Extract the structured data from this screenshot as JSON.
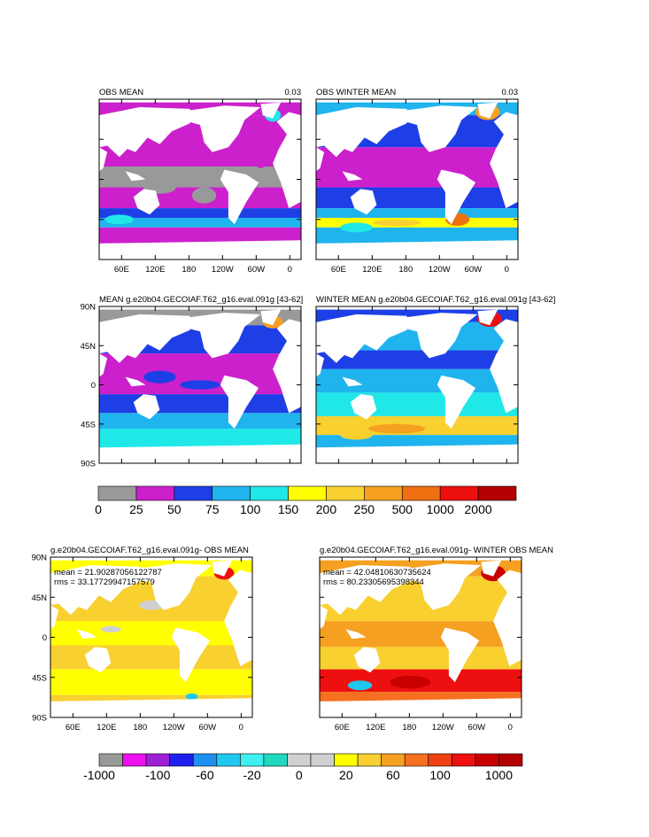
{
  "chart_data": [
    {
      "type": "heatmap",
      "title": "OBS MEAN",
      "right_label": "0.03",
      "x_tick_labels": [
        "60E",
        "120E",
        "180",
        "120W",
        "60W",
        "0"
      ],
      "y_tick_labels": []
    },
    {
      "type": "heatmap",
      "title": "OBS WINTER MEAN",
      "right_label": "0.03",
      "x_tick_labels": [
        "60E",
        "120E",
        "180",
        "120W",
        "60W",
        "0"
      ],
      "y_tick_labels": []
    },
    {
      "type": "heatmap",
      "title": "MEAN g.e20b04.GECOIAF.T62_g16.eval.091g [43-62]",
      "y_tick_labels": [
        "90N",
        "45N",
        "0",
        "45S",
        "90S"
      ]
    },
    {
      "type": "heatmap",
      "title": "WINTER MEAN g.e20b04.GECOIAF.T62_g16.eval.091g [43-62]",
      "y_tick_labels": []
    },
    {
      "type": "heatmap",
      "title": "g.e20b04.GECOIAF.T62_g16.eval.091g- OBS MEAN",
      "stats": [
        "mean = 21.90287056122787",
        "rms = 33.17729947157579"
      ],
      "x_tick_labels": [
        "60E",
        "120E",
        "180",
        "120W",
        "60W",
        "0"
      ],
      "y_tick_labels": [
        "90N",
        "45N",
        "0",
        "45S",
        "90S"
      ]
    },
    {
      "type": "heatmap",
      "title": "g.e20b04.GECOIAF.T62_g16.eval.091g- WINTER OBS MEAN",
      "stats": [
        "mean = 42.04810630735624",
        "rms = 80.23305695398344"
      ],
      "x_tick_labels": [
        "60E",
        "120E",
        "180",
        "120W",
        "60W",
        "0"
      ],
      "y_tick_labels": []
    }
  ],
  "colorbar_top": {
    "labels": [
      "0",
      "25",
      "50",
      "75",
      "100",
      "150",
      "200",
      "250",
      "500",
      "1000",
      "2000"
    ],
    "colors": [
      "#999999",
      "#cc20cc",
      "#1e3fe6",
      "#20b4ee",
      "#20e8e8",
      "#ffff00",
      "#f8d030",
      "#f5a020",
      "#ee7010",
      "#ee1010",
      "#b40000"
    ]
  },
  "colorbar_bottom": {
    "labels": [
      "-1000",
      "",
      "-100",
      "-60",
      "-20",
      "0",
      "20",
      "60",
      "100",
      "1000"
    ],
    "colors": [
      "#999999",
      "#ee10ee",
      "#a020d8",
      "#2020ee",
      "#1e90ee",
      "#20c8f0",
      "#40f0f0",
      "#20d8c0",
      "#d0d0d0",
      "#d0d0d0",
      "#ffff00",
      "#f8d030",
      "#f5a020",
      "#f57020",
      "#ee4010",
      "#ee1010",
      "#c80000",
      "#b40000"
    ]
  }
}
